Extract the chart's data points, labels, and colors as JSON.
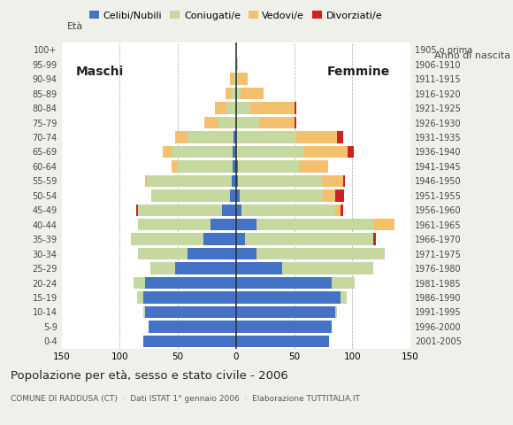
{
  "age_groups_bottom_to_top": [
    "0-4",
    "5-9",
    "10-14",
    "15-19",
    "20-24",
    "25-29",
    "30-34",
    "35-39",
    "40-44",
    "45-49",
    "50-54",
    "55-59",
    "60-64",
    "65-69",
    "70-74",
    "75-79",
    "80-84",
    "85-89",
    "90-94",
    "95-99",
    "100+"
  ],
  "birth_years_bottom_to_top": [
    "2001-2005",
    "1996-2000",
    "1991-1995",
    "1986-1990",
    "1981-1985",
    "1976-1980",
    "1971-1975",
    "1966-1970",
    "1961-1965",
    "1956-1960",
    "1951-1955",
    "1946-1950",
    "1941-1945",
    "1936-1940",
    "1931-1935",
    "1926-1930",
    "1921-1925",
    "1916-1920",
    "1911-1915",
    "1906-1910",
    "1905 o prima"
  ],
  "colors": {
    "celibe": "#4472c4",
    "coniugato": "#c5d8a0",
    "vedovo": "#f5c06e",
    "divorziato": "#cc2222"
  },
  "males_bottom_to_top": {
    "celibe": [
      80,
      75,
      78,
      80,
      78,
      52,
      42,
      28,
      22,
      12,
      5,
      4,
      3,
      3,
      2,
      0,
      0,
      0,
      0,
      0,
      0
    ],
    "coniugato": [
      0,
      0,
      2,
      5,
      10,
      22,
      42,
      62,
      62,
      72,
      68,
      72,
      48,
      52,
      40,
      15,
      8,
      4,
      2,
      0,
      0
    ],
    "vedovo": [
      0,
      0,
      0,
      0,
      0,
      0,
      0,
      0,
      0,
      0,
      0,
      2,
      4,
      8,
      10,
      12,
      10,
      5,
      3,
      0,
      0
    ],
    "divorziato": [
      0,
      0,
      0,
      0,
      0,
      0,
      0,
      0,
      0,
      2,
      0,
      0,
      0,
      0,
      0,
      0,
      0,
      0,
      0,
      0,
      0
    ]
  },
  "females_bottom_to_top": {
    "celibe": [
      80,
      82,
      85,
      90,
      82,
      40,
      18,
      8,
      18,
      5,
      3,
      2,
      2,
      0,
      0,
      0,
      0,
      0,
      0,
      0,
      0
    ],
    "coniugato": [
      0,
      0,
      2,
      5,
      20,
      78,
      110,
      110,
      100,
      80,
      72,
      72,
      52,
      58,
      52,
      20,
      12,
      4,
      2,
      0,
      0
    ],
    "vedovo": [
      0,
      0,
      0,
      0,
      0,
      0,
      0,
      0,
      18,
      5,
      10,
      18,
      25,
      38,
      35,
      30,
      38,
      20,
      8,
      2,
      0
    ],
    "divorziato": [
      0,
      0,
      0,
      0,
      0,
      0,
      0,
      2,
      0,
      2,
      8,
      2,
      0,
      5,
      5,
      2,
      2,
      0,
      0,
      0,
      0
    ]
  },
  "title": "Popolazione per età, sesso e stato civile - 2006",
  "subtitle": "COMUNE DI RADDUSA (CT)  ·  Dati ISTAT 1° gennaio 2006  ·  Elaborazione TUTTITALIA.IT",
  "xlim": 150,
  "background": "#f0f0eb",
  "plot_background": "#ffffff"
}
